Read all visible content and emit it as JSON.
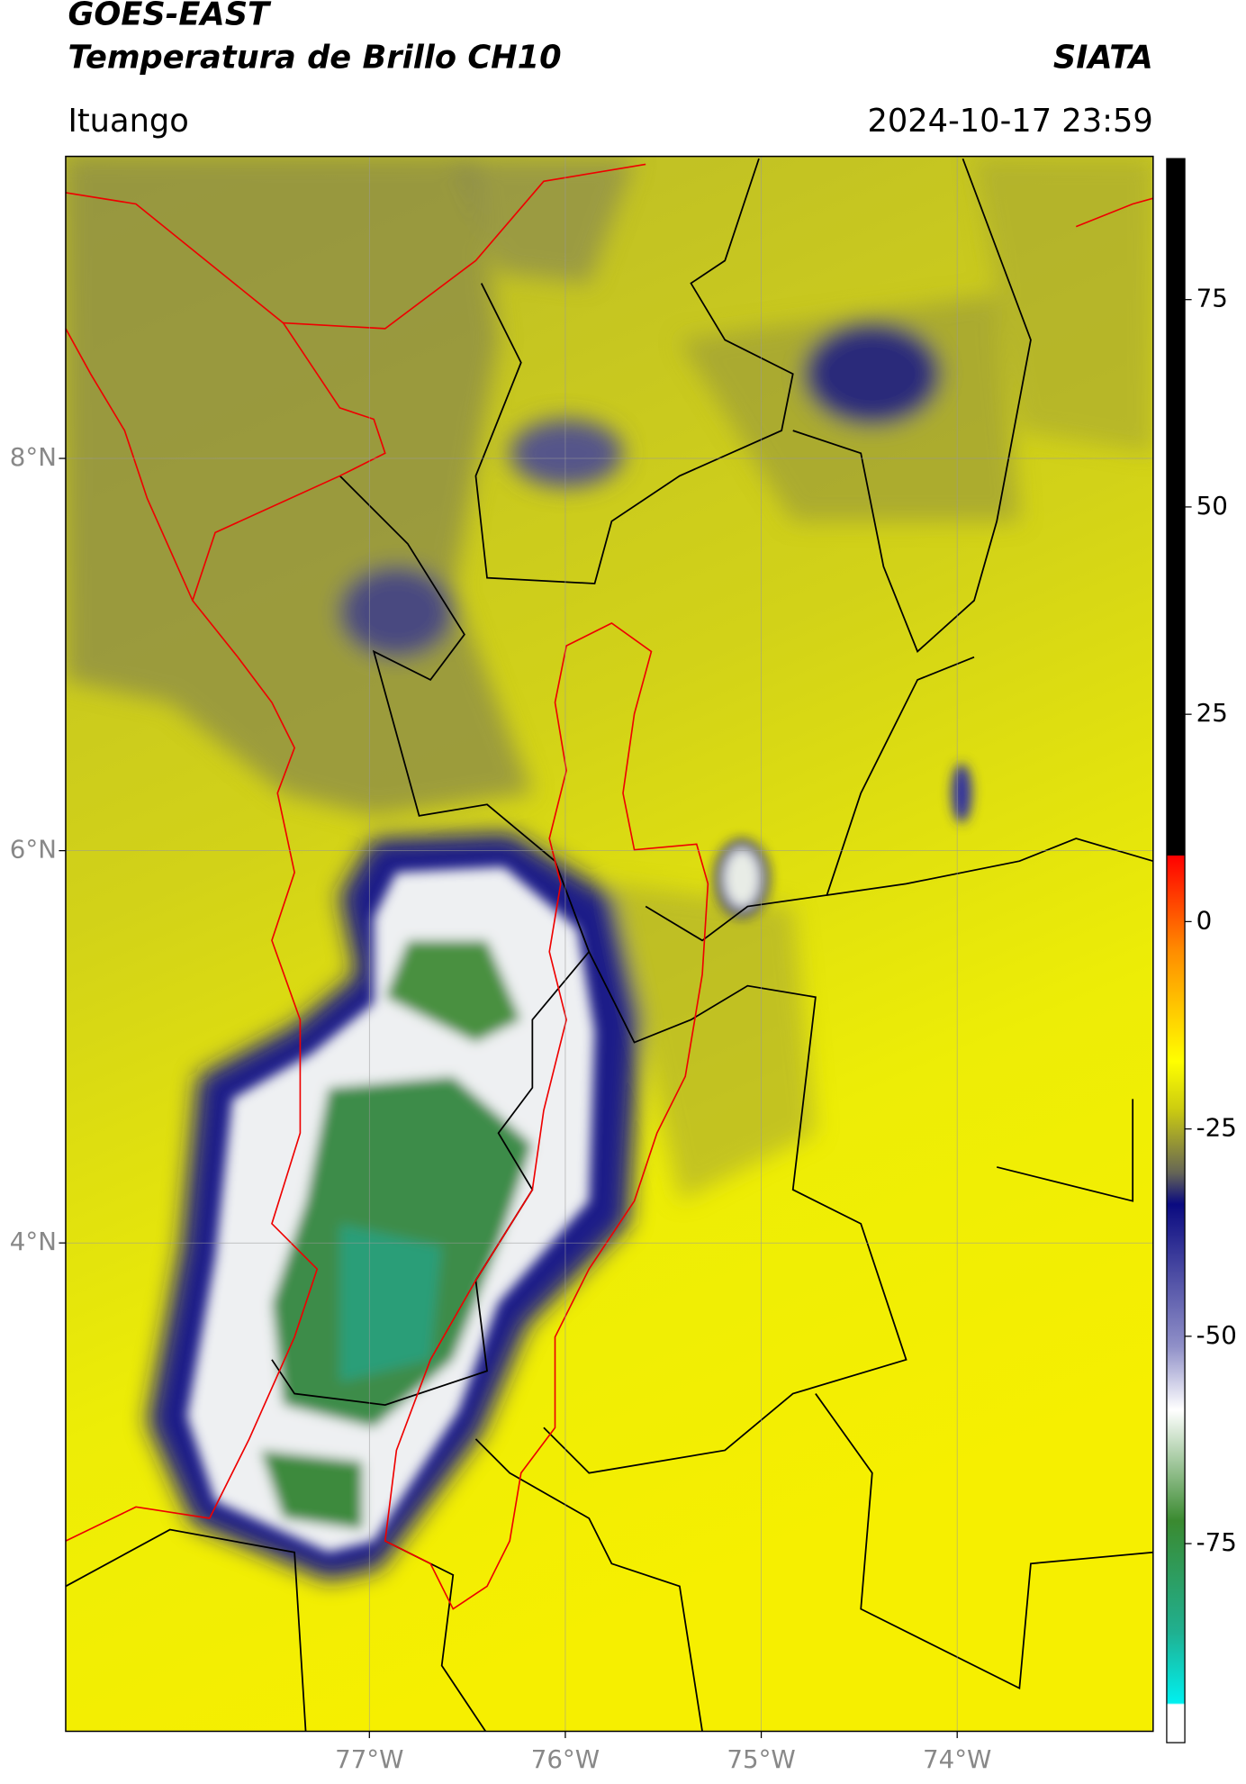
{
  "header": {
    "title_line1": "GOES-EAST",
    "title_line2": "Temperatura de Brillo CH10",
    "source": "SIATA",
    "region": "Ituango",
    "timestamp": "2024-10-17 23:59"
  },
  "map": {
    "latlim": [
      1.51,
      9.54
    ],
    "lonlim": [
      -78.55,
      -73.0
    ],
    "latticks": [
      {
        "value": 8,
        "label": "8°N"
      },
      {
        "value": 6,
        "label": "6°N"
      },
      {
        "value": 4,
        "label": "4°N"
      }
    ],
    "lonticks": [
      {
        "value": -77,
        "label": "77°W"
      },
      {
        "value": -76,
        "label": "76°W"
      },
      {
        "value": -75,
        "label": "75°W"
      },
      {
        "value": -74,
        "label": "74°W"
      }
    ],
    "grid": true
  },
  "colorbar": {
    "lim": [
      -99,
      92
    ],
    "ticks": [
      75,
      50,
      25,
      0,
      -25,
      -50,
      -75
    ]
  }
}
